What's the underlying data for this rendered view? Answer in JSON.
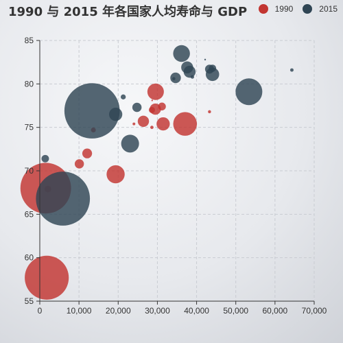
{
  "chart_data": {
    "type": "scatter",
    "title": "1990 与 2015 年各国家人均寿命与 GDP",
    "xlabel": "",
    "ylabel": "",
    "xlim": [
      0,
      70000
    ],
    "ylim": [
      55,
      85
    ],
    "xticks": [
      0,
      10000,
      20000,
      30000,
      40000,
      50000,
      60000,
      70000
    ],
    "xtick_labels": [
      "0",
      "10,000",
      "20,000",
      "30,000",
      "40,000",
      "50,000",
      "60,000",
      "70,000"
    ],
    "yticks": [
      55,
      60,
      65,
      70,
      75,
      80,
      85
    ],
    "ytick_labels": [
      "55",
      "60",
      "65",
      "70",
      "75",
      "80",
      "85"
    ],
    "grid": true,
    "legend_position": "top-right",
    "series": [
      {
        "name": "1990",
        "color": "#c23531",
        "points": [
          {
            "x": 28604,
            "y": 77,
            "size": 17096869
          },
          {
            "x": 31163,
            "y": 77.4,
            "size": 27662440
          },
          {
            "x": 1516,
            "y": 68,
            "size": 1154605773
          },
          {
            "x": 13670,
            "y": 74.7,
            "size": 10582082
          },
          {
            "x": 28599,
            "y": 75,
            "size": 4986705
          },
          {
            "x": 29476,
            "y": 77.1,
            "size": 56943299
          },
          {
            "x": 31476,
            "y": 75.4,
            "size": 78958237
          },
          {
            "x": 28666,
            "y": 78.1,
            "size": 254830
          },
          {
            "x": 1777,
            "y": 57.7,
            "size": 870601776
          },
          {
            "x": 29550,
            "y": 79.1,
            "size": 122249285
          },
          {
            "x": 2076,
            "y": 67.9,
            "size": 20194354
          },
          {
            "x": 12087,
            "y": 72,
            "size": 42972254
          },
          {
            "x": 24021,
            "y": 75.4,
            "size": 3397534
          },
          {
            "x": 43296,
            "y": 76.8,
            "size": 4240375
          },
          {
            "x": 10088,
            "y": 70.8,
            "size": 38195258
          },
          {
            "x": 19349,
            "y": 69.6,
            "size": 147568552
          },
          {
            "x": 26424,
            "y": 75.7,
            "size": 57110117
          },
          {
            "x": 37062,
            "y": 75.4,
            "size": 252847810
          }
        ]
      },
      {
        "name": "2015",
        "color": "#2f4554",
        "points": [
          {
            "x": 44056,
            "y": 81.8,
            "size": 23968973
          },
          {
            "x": 43294,
            "y": 81.7,
            "size": 35939927
          },
          {
            "x": 13334,
            "y": 76.9,
            "size": 1376048943
          },
          {
            "x": 21291,
            "y": 78.5,
            "size": 11389562
          },
          {
            "x": 38923,
            "y": 80.8,
            "size": 5503457
          },
          {
            "x": 37599,
            "y": 81.9,
            "size": 64395345
          },
          {
            "x": 44053,
            "y": 81.1,
            "size": 80688545
          },
          {
            "x": 42182,
            "y": 82.8,
            "size": 329425
          },
          {
            "x": 5903,
            "y": 66.8,
            "size": 1311050527
          },
          {
            "x": 36162,
            "y": 83.5,
            "size": 126573481
          },
          {
            "x": 1390,
            "y": 71.4,
            "size": 25155317
          },
          {
            "x": 34644,
            "y": 80.7,
            "size": 50293439
          },
          {
            "x": 34186,
            "y": 80.6,
            "size": 4528526
          },
          {
            "x": 64304,
            "y": 81.6,
            "size": 5210967
          },
          {
            "x": 24787,
            "y": 77.3,
            "size": 38611794
          },
          {
            "x": 23038,
            "y": 73.13,
            "size": 143456918
          },
          {
            "x": 19360,
            "y": 76.5,
            "size": 78665830
          },
          {
            "x": 38225,
            "y": 81.4,
            "size": 64715810
          },
          {
            "x": 53354,
            "y": 79.1,
            "size": 321773631
          }
        ]
      }
    ]
  }
}
